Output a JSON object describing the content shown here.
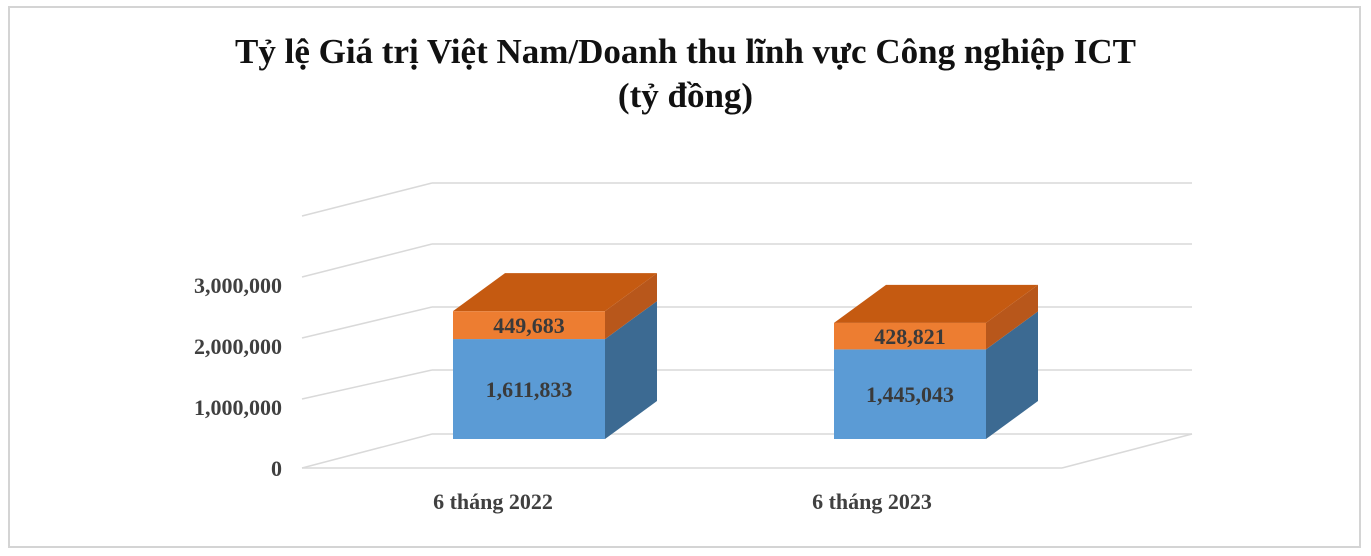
{
  "chart_data": {
    "type": "bar",
    "stacked": true,
    "three_d": true,
    "title": "Tỷ lệ Giá trị Việt Nam/Doanh thu lĩnh vực Công nghiệp ICT",
    "subtitle": "(tỷ đồng)",
    "categories": [
      "6 tháng 2022",
      "6 tháng 2023"
    ],
    "series": [
      {
        "values": [
          1611833,
          1445043
        ],
        "labels": [
          "1,611,833",
          "1,445,043"
        ]
      },
      {
        "values": [
          449683,
          428821
        ],
        "labels": [
          "449,683",
          "428,821"
        ]
      }
    ],
    "ylim": [
      0,
      3000000
    ],
    "yticks": [
      0,
      1000000,
      2000000,
      3000000
    ],
    "ytick_labels": [
      "0",
      "1,000,000",
      "2,000,000",
      "3,000,000"
    ],
    "grid": true,
    "legend": "none"
  },
  "colors": {
    "series_front": [
      "#5b9bd5",
      "#ed7d31"
    ],
    "series_side": [
      "#3c6a92",
      "#b8571b"
    ],
    "series_top": [
      "#4a86bf",
      "#c55a11"
    ],
    "grid": "#d9d9d9"
  }
}
